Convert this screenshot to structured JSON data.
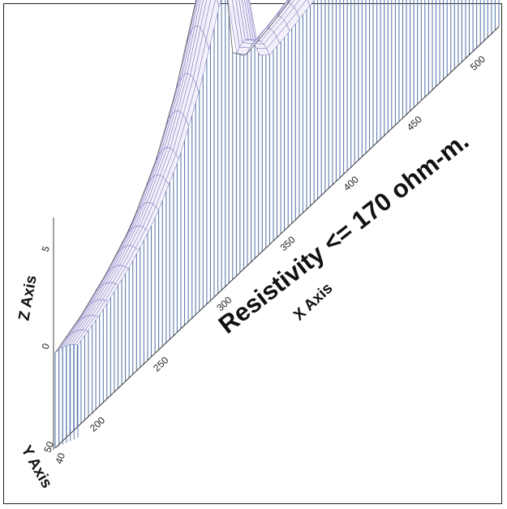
{
  "chart_data": {
    "type": "surface",
    "title": "",
    "xlabel": "X Axis",
    "ylabel": "Y Axis",
    "zlabel": "Z Axis",
    "annotation": "Resistivity <= 170 ohm-m.",
    "x_ticks": [
      "200",
      "250",
      "300",
      "350",
      "400",
      "450",
      "500"
    ],
    "y_ticks": [
      "40",
      "50"
    ],
    "z_ticks": [
      "5",
      "0"
    ],
    "xlim": [
      170,
      520
    ],
    "surface_profile": {
      "x": [
        170,
        190,
        210,
        230,
        250,
        265,
        280,
        290,
        300,
        305,
        310,
        320,
        340,
        360,
        380,
        400,
        420,
        440,
        460,
        480,
        500,
        520
      ],
      "height": [
        0.12,
        0.16,
        0.22,
        0.3,
        0.44,
        0.6,
        0.82,
        0.95,
        1.0,
        0.78,
        0.55,
        0.5,
        0.52,
        0.55,
        0.55,
        0.54,
        0.55,
        0.58,
        0.62,
        0.7,
        0.8,
        0.85
      ]
    },
    "colors": {
      "mesh": "#6a6ab8",
      "wall": "#5f7fb0",
      "surface": "#f4f0fa"
    }
  }
}
